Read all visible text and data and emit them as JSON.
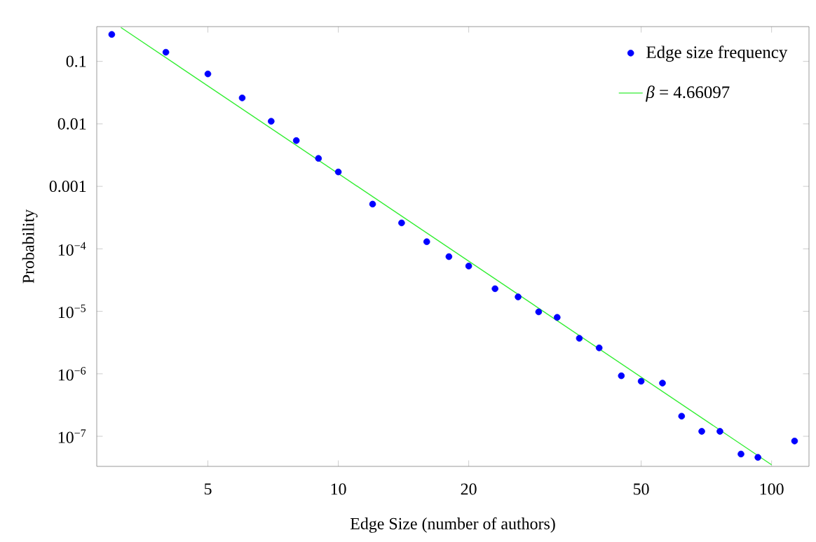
{
  "chart_data": {
    "type": "scatter",
    "xlabel": "Edge Size (number of authors)",
    "ylabel": "Probability",
    "log": "xy",
    "grid": false,
    "legend": "top right",
    "marker": "circle",
    "xlim": [
      2.77,
      122
    ],
    "ylim": [
      3.3e-08,
      0.36
    ],
    "xticks": [
      5,
      10,
      20,
      50,
      100
    ],
    "yticks": [
      {
        "value": 1e-07,
        "label": "10$^{−7}$"
      },
      {
        "value": 1e-06,
        "label": "10$^{−6}$"
      },
      {
        "value": 1e-05,
        "label": "10$^{−5}$"
      },
      {
        "value": 0.0001,
        "label": "10$^{−4}$"
      },
      0.001,
      0.01,
      0.1
    ],
    "series": [
      {
        "name": "Edge  size frequency",
        "color": "#0000ff",
        "x": [
          3,
          4,
          5,
          6,
          7,
          8,
          9,
          10,
          12,
          14,
          16,
          18,
          20,
          23,
          26,
          29,
          32,
          36,
          40,
          45,
          50,
          56,
          62,
          69,
          76,
          85,
          93,
          113
        ],
        "values": [
          0.27,
          0.14,
          0.063,
          0.026,
          0.011,
          0.0054,
          0.0028,
          0.0017,
          0.00052,
          0.00026,
          0.00013,
          7.5e-05,
          5.3e-05,
          2.3e-05,
          1.7e-05,
          9.8e-06,
          8e-06,
          3.7e-06,
          2.6e-06,
          9.3e-07,
          7.6e-07,
          7.1e-07,
          2.1e-07,
          1.2e-07,
          1.2e-07,
          5.2e-08,
          4.6e-08,
          8.4e-08
        ]
      },
      {
        "name": "*β* = 4.66097",
        "type": "line",
        "color": "#33ee33",
        "marker": "none",
        "x": [
          3.15,
          100
        ],
        "values": [
          0.349,
          3.5e-08
        ]
      }
    ]
  }
}
